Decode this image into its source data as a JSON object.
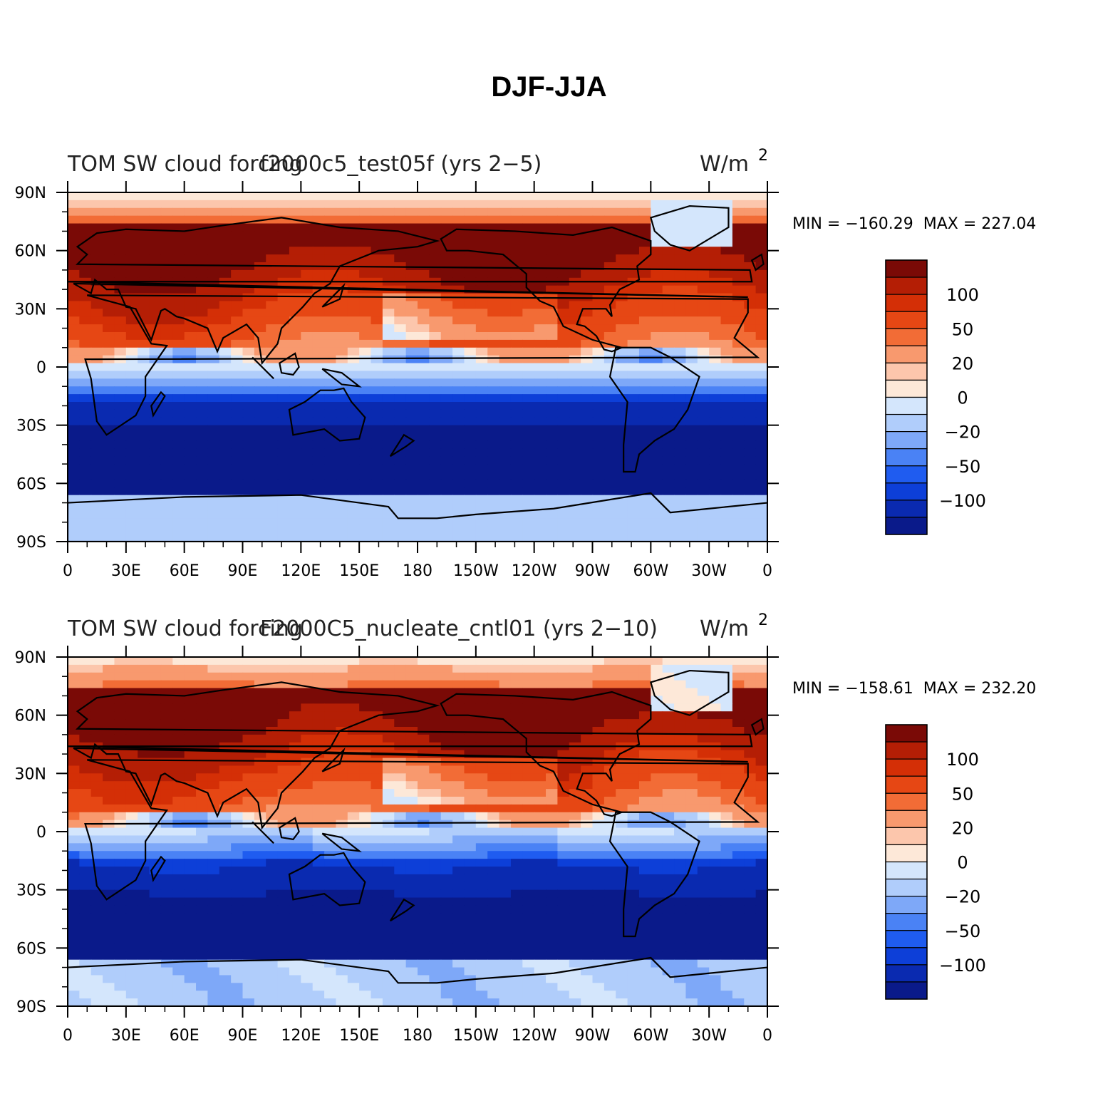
{
  "title": "DJF-JJA",
  "units_base": "W/m",
  "units_exp": "2",
  "stats_label": "MIN = ",
  "stats_max_label": "  MAX = ",
  "colors": [
    "#0a1a8a",
    "#0a2ab0",
    "#0d3fd8",
    "#1f5cf0",
    "#4a82f5",
    "#7ea8f8",
    "#b0cdfb",
    "#d4e6fc",
    "#fde8d8",
    "#fcc6ac",
    "#f8996e",
    "#f26c36",
    "#e64714",
    "#d42f06",
    "#b41e05",
    "#7a0a06"
  ],
  "panels": [
    {
      "left_title": "TOM SW cloud forcing",
      "center_title": "f2000c5_test05f (yrs 2−5)",
      "min": "−160.29",
      "max": "227.04"
    },
    {
      "left_title": "TOM SW cloud forcing",
      "center_title": "F2000C5_nucleate_cntl01 (yrs 2−10)",
      "min": "−158.61",
      "max": "232.20"
    }
  ],
  "chart_data": {
    "type": "heatmap",
    "variable": "TOM SW cloud forcing",
    "season_difference": "DJF-JJA",
    "x_ticks": [
      "0",
      "30E",
      "60E",
      "90E",
      "120E",
      "150E",
      "180",
      "150W",
      "120W",
      "90W",
      "60W",
      "30W",
      "0"
    ],
    "y_ticks": [
      "90N",
      "60N",
      "30N",
      "0",
      "30S",
      "60S",
      "90S"
    ],
    "x_range_lon": [
      0,
      360
    ],
    "y_range_lat": [
      -90,
      90
    ],
    "colorbar_labels": [
      "100",
      "50",
      "20",
      "0",
      "−20",
      "−50",
      "−100"
    ],
    "colorbar_levels": [
      "150",
      "120",
      "100",
      "70",
      "50",
      "30",
      "20",
      "10",
      "0",
      "−10",
      "−20",
      "−30",
      "−50",
      "−70",
      "−100",
      "−120"
    ]
  }
}
